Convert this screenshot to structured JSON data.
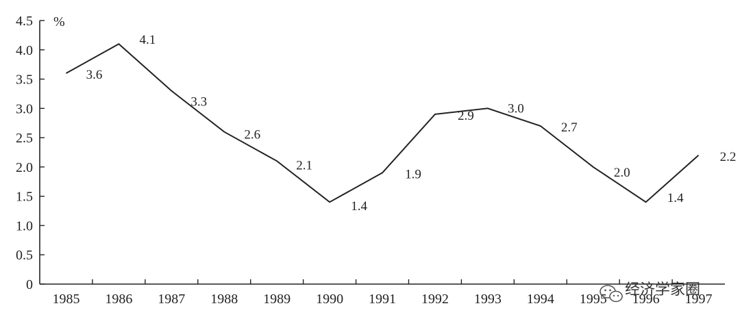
{
  "chart_data": {
    "type": "line",
    "title": "",
    "xlabel": "",
    "ylabel": "%",
    "ylim": [
      0,
      4.5
    ],
    "y_ticks": [
      "0",
      "0.5",
      "1.0",
      "1.5",
      "2.0",
      "2.5",
      "3.0",
      "3.5",
      "4.0",
      "4.5"
    ],
    "categories": [
      "1985",
      "1986",
      "1987",
      "1988",
      "1989",
      "1990",
      "1991",
      "1992",
      "1993",
      "1994",
      "1995",
      "1996",
      "1997"
    ],
    "values": [
      3.6,
      4.1,
      3.3,
      2.6,
      2.1,
      1.4,
      1.9,
      2.9,
      3.0,
      2.7,
      2.0,
      1.4,
      2.2
    ],
    "data_labels": [
      "3.6",
      "4.1",
      "3.3",
      "2.6",
      "2.1",
      "1.4",
      "1.9",
      "2.9",
      "3.0",
      "2.7",
      "2.0",
      "1.4",
      "2.2"
    ],
    "grid": false,
    "legend": "none"
  },
  "watermark": {
    "text": "经济学家圈",
    "icon": "wechat-icon"
  }
}
